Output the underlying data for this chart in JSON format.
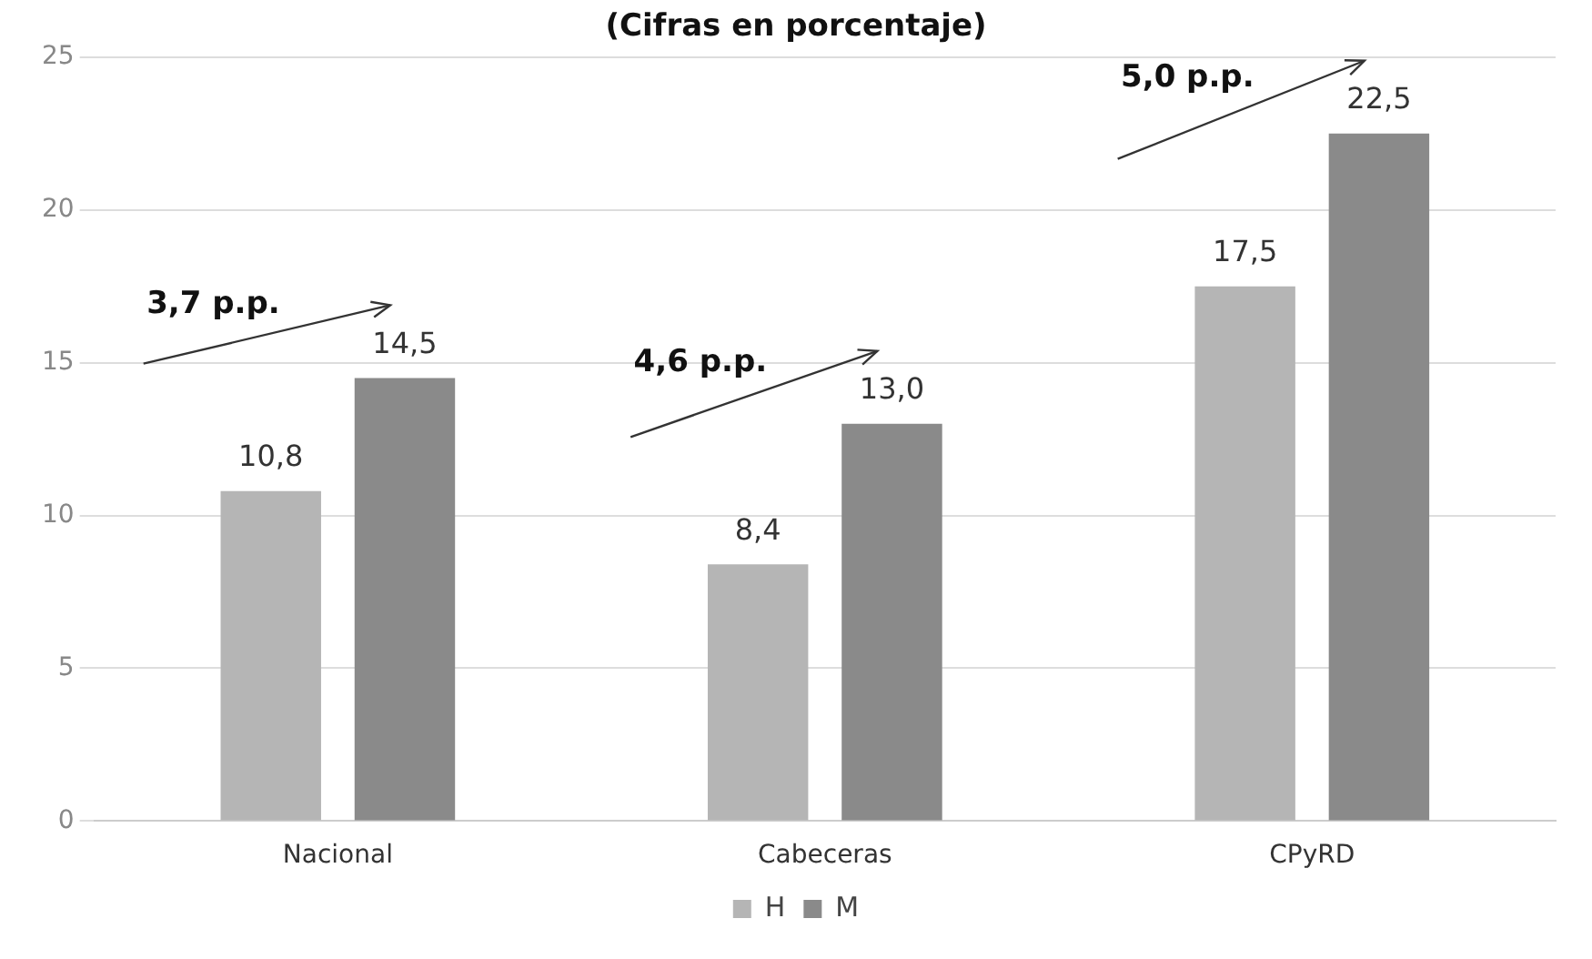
{
  "chart_data": {
    "type": "bar",
    "title": "(Cifras en porcentaje)",
    "categories": [
      "Nacional",
      "Cabeceras",
      "CPyRD"
    ],
    "series": [
      {
        "name": "H",
        "color": "#b5b5b5",
        "values": [
          10.8,
          8.4,
          17.5
        ],
        "value_labels": [
          "10,8",
          "8,4",
          "17,5"
        ]
      },
      {
        "name": "M",
        "color": "#8a8a8a",
        "values": [
          14.5,
          13.0,
          22.5
        ],
        "value_labels": [
          "14,5",
          "13,0",
          "22,5"
        ]
      }
    ],
    "ylim": [
      0,
      25
    ],
    "yticks": [
      0,
      5,
      10,
      15,
      20,
      25
    ],
    "grid": "y",
    "legend": "bottom",
    "annotations": [
      "3,7 p.p.",
      "4,6 p.p.",
      "5,0 p.p."
    ]
  }
}
